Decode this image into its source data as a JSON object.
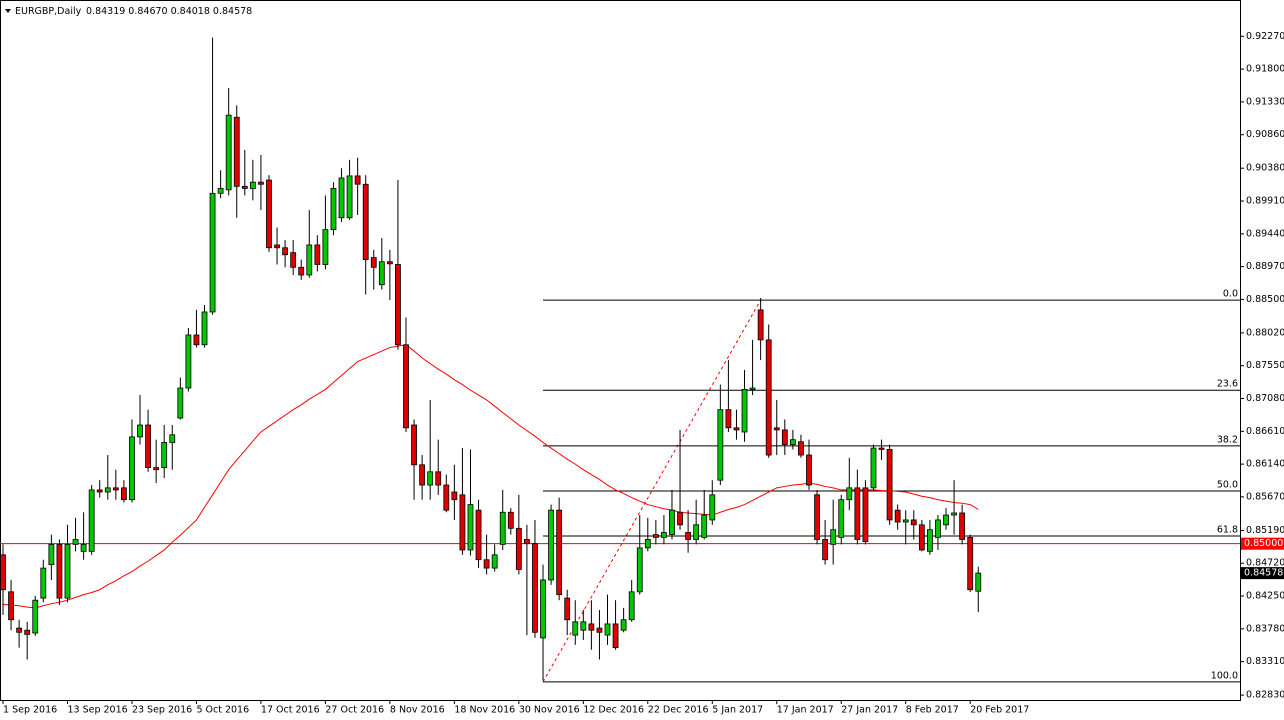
{
  "chart_data": {
    "type": "candlestick",
    "title": "EURGBP,Daily",
    "quote": "0.84319 0.84670 0.84018 0.84578",
    "categories": [
      "1 Sep 2016",
      null,
      null,
      null,
      null,
      null,
      null,
      null,
      "13 Sep 2016",
      null,
      null,
      null,
      null,
      null,
      null,
      null,
      "23 Sep 2016",
      null,
      null,
      null,
      null,
      null,
      null,
      null,
      "5 Oct 2016",
      null,
      null,
      null,
      null,
      null,
      null,
      null,
      "17 Oct 2016",
      null,
      null,
      null,
      null,
      null,
      null,
      null,
      "27 Oct 2016",
      null,
      null,
      null,
      null,
      null,
      null,
      null,
      "8 Nov 2016",
      null,
      null,
      null,
      null,
      null,
      null,
      null,
      "18 Nov 2016",
      null,
      null,
      null,
      null,
      null,
      null,
      null,
      "30 Nov 2016",
      null,
      null,
      null,
      null,
      null,
      null,
      null,
      "12 Dec 2016",
      null,
      null,
      null,
      null,
      null,
      null,
      null,
      "22 Dec 2016",
      null,
      null,
      null,
      null,
      null,
      null,
      null,
      "5 Jan 2017",
      null,
      null,
      null,
      null,
      null,
      null,
      null,
      "17 Jan 2017",
      null,
      null,
      null,
      null,
      null,
      null,
      null,
      "27 Jan 2017",
      null,
      null,
      null,
      null,
      null,
      null,
      null,
      "8 Feb 2017",
      null,
      null,
      null,
      null,
      null,
      null,
      null,
      "20 Feb 2017",
      null
    ],
    "open": [
      0.8484,
      0.8431,
      0.8379,
      0.8376,
      0.8372,
      0.8422,
      0.847,
      0.8499,
      0.8422,
      0.8499,
      0.8489,
      0.8489,
      0.8577,
      0.8574,
      0.858,
      0.858,
      0.8563,
      0.8653,
      0.867,
      0.8609,
      0.8609,
      0.8645,
      0.868,
      0.8723,
      0.8799,
      0.8785,
      0.8832,
      0.9002,
      0.9007,
      0.9111,
      0.9012,
      0.9009,
      0.9018,
      0.9021,
      0.8928,
      0.8924,
      0.8917,
      0.8896,
      0.8885,
      0.8928,
      0.89,
      0.895,
      0.8967,
      0.8967,
      0.9027,
      0.9015,
      0.891,
      0.8871,
      0.8904,
      0.89,
      0.8785,
      0.867,
      0.8613,
      0.8584,
      0.8603,
      0.8584,
      0.8574,
      0.857,
      0.8491,
      0.8548,
      0.8477,
      0.8465,
      0.8499,
      0.8545,
      0.8522,
      0.8506,
      0.85,
      0.8365,
      0.8448,
      0.8548,
      0.8422,
      0.8369,
      0.8376,
      0.8385,
      0.8379,
      0.8369,
      0.8385,
      0.8376,
      0.8391,
      0.8431,
      0.8494,
      0.8513,
      0.8509,
      0.8513,
      0.8545,
      0.8516,
      0.8506,
      0.8509,
      0.8534,
      0.8591,
      0.8692,
      0.8666,
      0.866,
      0.8721,
      0.8835,
      0.8792,
      0.8666,
      0.8663,
      0.8642,
      0.8646,
      0.8627,
      0.857,
      0.8506,
      0.8499,
      0.8509,
      0.8563,
      0.858,
      0.858,
      0.858,
      0.8637,
      0.8635,
      0.8548,
      0.8531,
      0.8534,
      0.8527,
      0.8489,
      0.8509,
      0.8527,
      0.8541,
      0.8544,
      0.8509,
      0.84319
    ],
    "high": [
      0.8499,
      0.8448,
      0.8391,
      0.8388,
      0.8425,
      0.8477,
      0.8513,
      0.8506,
      0.8527,
      0.8537,
      0.8545,
      0.8584,
      0.8591,
      0.8627,
      0.8606,
      0.8591,
      0.8678,
      0.8713,
      0.8692,
      0.8649,
      0.867,
      0.867,
      0.8738,
      0.8809,
      0.8835,
      0.8842,
      0.9225,
      0.9035,
      0.9153,
      0.9128,
      0.9064,
      0.905,
      0.9057,
      0.9028,
      0.8953,
      0.8935,
      0.8935,
      0.8907,
      0.8978,
      0.8942,
      0.8999,
      0.9018,
      0.9038,
      0.905,
      0.9053,
      0.9028,
      0.8921,
      0.8938,
      0.8921,
      0.9021,
      0.8824,
      0.8678,
      0.8627,
      0.8706,
      0.8649,
      0.8599,
      0.8613,
      0.8637,
      0.8635,
      0.8563,
      0.8513,
      0.8499,
      0.8577,
      0.8551,
      0.857,
      0.8527,
      0.8534,
      0.847,
      0.8556,
      0.8566,
      0.8434,
      0.8419,
      0.8405,
      0.8419,
      0.8405,
      0.8427,
      0.8419,
      0.8408,
      0.8448,
      0.8541,
      0.8537,
      0.8534,
      0.8541,
      0.8577,
      0.8663,
      0.8548,
      0.8563,
      0.8577,
      0.8591,
      0.8728,
      0.8763,
      0.8692,
      0.8749,
      0.8792,
      0.8852,
      0.8814,
      0.8706,
      0.8678,
      0.8663,
      0.8656,
      0.8649,
      0.8577,
      0.8534,
      0.8563,
      0.857,
      0.8623,
      0.8606,
      0.8591,
      0.8642,
      0.8649,
      0.8642,
      0.8556,
      0.8548,
      0.8548,
      0.8534,
      0.8534,
      0.8541,
      0.8551,
      0.8591,
      0.8556,
      0.8513,
      0.8467
    ],
    "low": [
      0.8398,
      0.8376,
      0.8351,
      0.8334,
      0.8368,
      0.8416,
      0.8448,
      0.8412,
      0.8416,
      0.8489,
      0.8477,
      0.8484,
      0.8566,
      0.8563,
      0.8563,
      0.8559,
      0.8559,
      0.8642,
      0.8603,
      0.8587,
      0.8594,
      0.8606,
      0.8678,
      0.8718,
      0.8781,
      0.8781,
      0.8828,
      0.8995,
      0.8999,
      0.8967,
      0.8999,
      0.8992,
      0.8978,
      0.8918,
      0.89,
      0.8896,
      0.8885,
      0.8878,
      0.8881,
      0.889,
      0.8893,
      0.8942,
      0.8961,
      0.8964,
      0.8971,
      0.8857,
      0.8864,
      0.8864,
      0.8849,
      0.8778,
      0.866,
      0.8563,
      0.8563,
      0.8563,
      0.857,
      0.8545,
      0.8534,
      0.8484,
      0.8483,
      0.8465,
      0.8456,
      0.846,
      0.8491,
      0.8513,
      0.8456,
      0.8369,
      0.8365,
      0.8304,
      0.8441,
      0.8419,
      0.8369,
      0.8355,
      0.8362,
      0.8348,
      0.8334,
      0.8355,
      0.8348,
      0.8373,
      0.8388,
      0.8427,
      0.8489,
      0.8499,
      0.8499,
      0.8506,
      0.852,
      0.8487,
      0.8499,
      0.8506,
      0.8527,
      0.8584,
      0.866,
      0.8649,
      0.8646,
      0.8713,
      0.8763,
      0.8623,
      0.8627,
      0.8627,
      0.8635,
      0.8623,
      0.8577,
      0.8499,
      0.847,
      0.847,
      0.8499,
      0.8548,
      0.8499,
      0.8499,
      0.8577,
      0.862,
      0.8527,
      0.852,
      0.8499,
      0.8506,
      0.8489,
      0.8484,
      0.8491,
      0.852,
      0.8513,
      0.8499,
      0.8431,
      0.84018
    ],
    "close": [
      0.8434,
      0.8391,
      0.8373,
      0.837,
      0.8419,
      0.8465,
      0.8499,
      0.8422,
      0.8499,
      0.8506,
      0.8499,
      0.8577,
      0.8574,
      0.858,
      0.8577,
      0.8563,
      0.8653,
      0.867,
      0.8609,
      0.8606,
      0.8645,
      0.8656,
      0.8723,
      0.8799,
      0.8785,
      0.8832,
      0.9002,
      0.9009,
      0.9114,
      0.9012,
      0.9009,
      0.9018,
      0.9015,
      0.8924,
      0.8924,
      0.8914,
      0.8896,
      0.8885,
      0.8928,
      0.89,
      0.895,
      0.9009,
      0.9024,
      0.9027,
      0.9015,
      0.8907,
      0.8896,
      0.8904,
      0.8901,
      0.8785,
      0.8666,
      0.8613,
      0.8584,
      0.8603,
      0.8584,
      0.8548,
      0.8563,
      0.8491,
      0.8556,
      0.8477,
      0.8465,
      0.8484,
      0.8545,
      0.8522,
      0.8463,
      0.85,
      0.8373,
      0.8448,
      0.8548,
      0.8427,
      0.8391,
      0.8388,
      0.8388,
      0.8376,
      0.8373,
      0.8385,
      0.8351,
      0.8391,
      0.8431,
      0.8494,
      0.8506,
      0.8509,
      0.8516,
      0.8548,
      0.8527,
      0.8506,
      0.8527,
      0.8541,
      0.857,
      0.8692,
      0.8666,
      0.8663,
      0.8721,
      0.8723,
      0.8792,
      0.8627,
      0.8663,
      0.8642,
      0.8649,
      0.8627,
      0.8584,
      0.8506,
      0.8477,
      0.852,
      0.8563,
      0.858,
      0.8506,
      0.8503,
      0.8637,
      0.8635,
      0.8534,
      0.8531,
      0.8534,
      0.8527,
      0.8491,
      0.852,
      0.8534,
      0.8541,
      0.8544,
      0.8506,
      0.8434,
      0.84578
    ],
    "up_color": "#00c800",
    "down_color": "#e00000",
    "moving_average": {
      "color": "#ff0000",
      "values": [
        0.8413,
        0.8412,
        0.8411,
        0.8409,
        0.8408,
        0.8411,
        0.8414,
        0.8416,
        0.8419,
        0.8423,
        0.8427,
        0.843,
        0.8434,
        0.8441,
        0.8447,
        0.8454,
        0.846,
        0.8468,
        0.8475,
        0.8483,
        0.8491,
        0.8502,
        0.8512,
        0.8523,
        0.8534,
        0.8552,
        0.857,
        0.8588,
        0.8606,
        0.862,
        0.8633,
        0.8647,
        0.866,
        0.8668,
        0.8676,
        0.8684,
        0.8692,
        0.8699,
        0.8707,
        0.8714,
        0.8721,
        0.8731,
        0.8741,
        0.8751,
        0.8761,
        0.8766,
        0.8771,
        0.8776,
        0.8781,
        0.8783,
        0.8785,
        0.8776,
        0.8766,
        0.8758,
        0.875,
        0.8743,
        0.8735,
        0.8728,
        0.872,
        0.8713,
        0.8706,
        0.8697,
        0.8688,
        0.8679,
        0.867,
        0.8662,
        0.8654,
        0.8645,
        0.8637,
        0.8629,
        0.8621,
        0.8614,
        0.8606,
        0.8599,
        0.8592,
        0.8584,
        0.8577,
        0.8572,
        0.8566,
        0.8561,
        0.8556,
        0.8553,
        0.855,
        0.8548,
        0.8545,
        0.8544,
        0.8543,
        0.8542,
        0.8541,
        0.8545,
        0.8549,
        0.8552,
        0.8556,
        0.8562,
        0.8568,
        0.8574,
        0.858,
        0.8582,
        0.8584,
        0.8585,
        0.8587,
        0.8585,
        0.8582,
        0.858,
        0.8577,
        0.8577,
        0.8577,
        0.8577,
        0.8577,
        0.8576,
        0.8576,
        0.8575,
        0.8574,
        0.8571,
        0.8568,
        0.8566,
        0.8563,
        0.8561,
        0.8559,
        0.8558,
        0.8556,
        0.8549
      ]
    },
    "fibonacci": {
      "high": 0.8849,
      "low": 0.8302,
      "levels": [
        {
          "value": 0,
          "label": "0.0"
        },
        {
          "value": 23.6,
          "label": "23.6"
        },
        {
          "value": 38.2,
          "label": "38.2"
        },
        {
          "value": 50,
          "label": "50.0"
        },
        {
          "value": 61.8,
          "label": "61.8"
        },
        {
          "value": 100,
          "label": "100.0"
        }
      ]
    },
    "price_line": {
      "value": 0.85,
      "label": "0.85000",
      "color": "#ff0000"
    },
    "bid": {
      "value": 0.84578,
      "label": "0.84578"
    },
    "ylim": [
      0.8276,
      0.9279
    ],
    "yticks": [
      {
        "value": 0.9227,
        "label": "0.92270"
      },
      {
        "value": 0.918,
        "label": "0.91800"
      },
      {
        "value": 0.9133,
        "label": "0.91330"
      },
      {
        "value": 0.9086,
        "label": "0.90860"
      },
      {
        "value": 0.9038,
        "label": "0.90380"
      },
      {
        "value": 0.8991,
        "label": "0.89910"
      },
      {
        "value": 0.8944,
        "label": "0.89440"
      },
      {
        "value": 0.8897,
        "label": "0.88970"
      },
      {
        "value": 0.885,
        "label": "0.88500"
      },
      {
        "value": 0.8802,
        "label": "0.88020"
      },
      {
        "value": 0.8755,
        "label": "0.87550"
      },
      {
        "value": 0.8708,
        "label": "0.87080"
      },
      {
        "value": 0.8661,
        "label": "0.86610"
      },
      {
        "value": 0.8614,
        "label": "0.86140"
      },
      {
        "value": 0.8567,
        "label": "0.85670"
      },
      {
        "value": 0.8519,
        "label": "0.85190"
      },
      {
        "value": 0.8472,
        "label": "0.84720"
      },
      {
        "value": 0.8425,
        "label": "0.84250"
      },
      {
        "value": 0.8378,
        "label": "0.83780"
      },
      {
        "value": 0.8331,
        "label": "0.83310"
      },
      {
        "value": 0.8283,
        "label": "0.82830"
      }
    ]
  }
}
